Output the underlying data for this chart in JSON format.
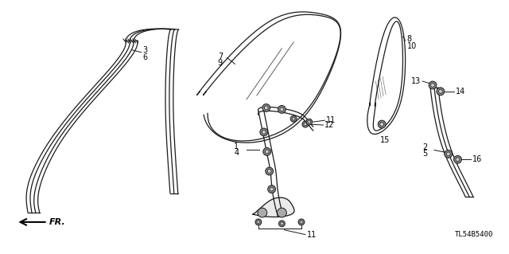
{
  "diagram_code": "TL54B5400",
  "background_color": "#ffffff",
  "line_color": "#1a1a1a",
  "figsize": [
    6.4,
    3.19
  ],
  "dpi": 100
}
